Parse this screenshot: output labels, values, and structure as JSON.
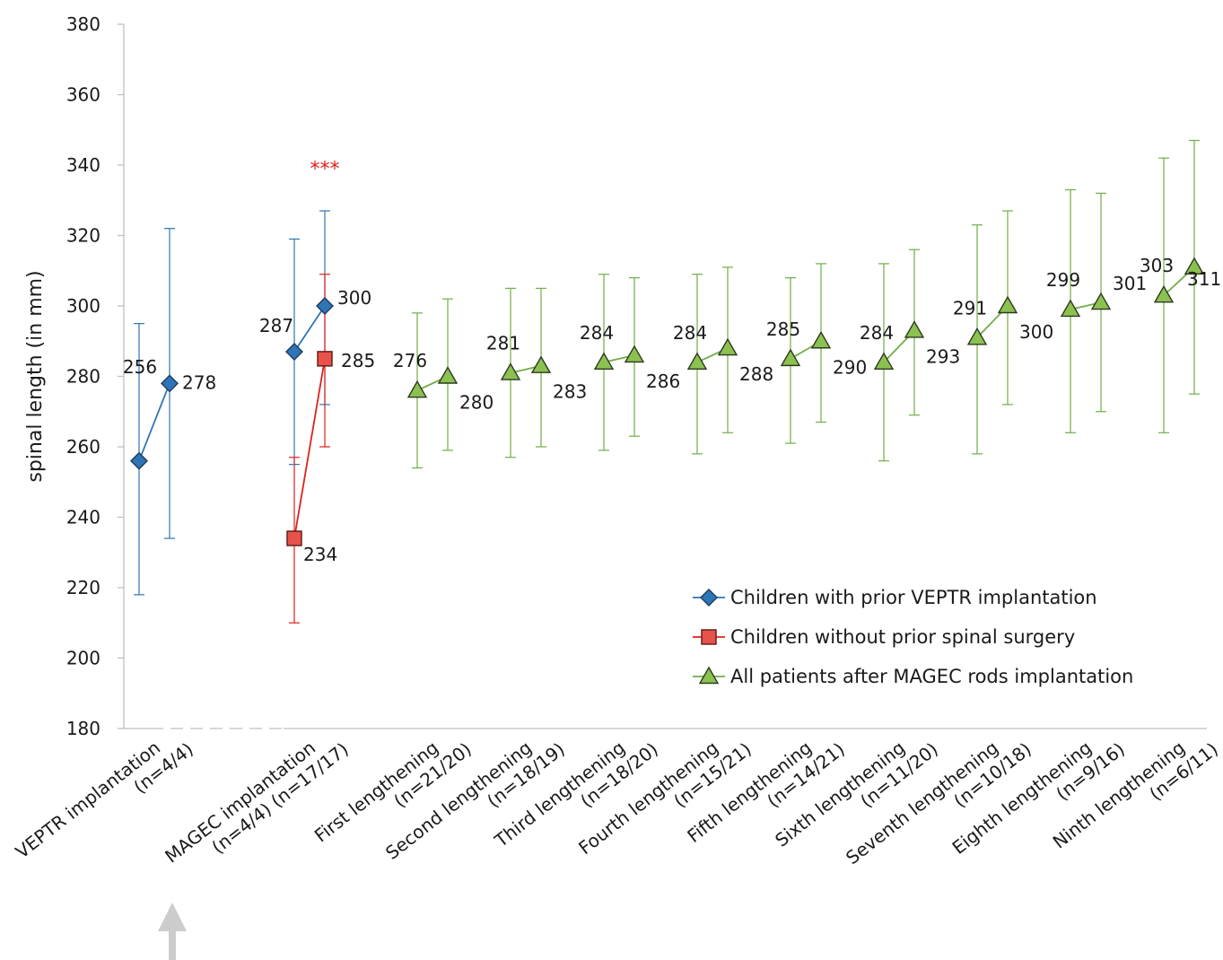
{
  "chart_data": {
    "type": "line",
    "ylabel": "spinal length (in mm)",
    "xlabel": "",
    "ylim": [
      180,
      380
    ],
    "yticks": [
      180,
      200,
      220,
      240,
      260,
      280,
      300,
      320,
      340,
      360,
      380
    ],
    "grid": false,
    "legend_position": "lower-right",
    "categories": [
      {
        "line1": "VEPTR implantation",
        "line2": "(n=4/4)"
      },
      {
        "line1": "MAGEC implantation",
        "line2": "(n=4/4) (n=17/17)"
      },
      {
        "line1": "First lengthening",
        "line2": "(n=21/20)"
      },
      {
        "line1": "Second lengthening",
        "line2": "(n=18/19)"
      },
      {
        "line1": "Third lengthening",
        "line2": "(n=18/20)"
      },
      {
        "line1": "Fourth lengthening",
        "line2": "(n=15/21)"
      },
      {
        "line1": "Fifth lengthening",
        "line2": "(n=14/21)"
      },
      {
        "line1": "Sixth lengthening",
        "line2": "(n=11/20)"
      },
      {
        "line1": "Seventh lengthening",
        "line2": "(n=10/18)"
      },
      {
        "line1": "Eighth lengthening",
        "line2": "(n=9/16)"
      },
      {
        "line1": "Ninth lengthening",
        "line2": "(n=6/11)"
      }
    ],
    "series": [
      {
        "name": "Children with prior VEPTR implantation",
        "color": "#2e75b6",
        "fill": "#2e75b6",
        "marker": "diamond",
        "segments": [
          [
            {
              "cat": 0,
              "side": "left",
              "y": 256,
              "err_low": 218,
              "err_high": 295,
              "label": "256"
            },
            {
              "cat": 0,
              "side": "right",
              "y": 278,
              "err_low": 234,
              "err_high": 322,
              "label": "278"
            }
          ],
          [
            {
              "cat": 1,
              "side": "left",
              "y": 287,
              "err_low": 255,
              "err_high": 319,
              "label": "287"
            },
            {
              "cat": 1,
              "side": "right",
              "y": 300,
              "err_low": 272,
              "err_high": 327,
              "label": "300"
            }
          ]
        ]
      },
      {
        "name": "Children without prior spinal surgery",
        "color": "#e0201b",
        "fill": "#e8524a",
        "marker": "square",
        "segments": [
          [
            {
              "cat": 1,
              "side": "left",
              "y": 234,
              "err_low": 210,
              "err_high": 257,
              "label": "234"
            },
            {
              "cat": 1,
              "side": "right",
              "y": 285,
              "err_low": 260,
              "err_high": 309,
              "label": "285"
            }
          ]
        ]
      },
      {
        "name": "All patients after MAGEC rods implantation",
        "color": "#70ad47",
        "fill": "#8cc152",
        "marker": "triangle",
        "segments": [
          [
            {
              "cat": 2,
              "side": "left",
              "y": 276,
              "err_low": 254,
              "err_high": 298,
              "label": "276"
            },
            {
              "cat": 2,
              "side": "right",
              "y": 280,
              "err_low": 259,
              "err_high": 302,
              "label": "280"
            }
          ],
          [
            {
              "cat": 3,
              "side": "left",
              "y": 281,
              "err_low": 257,
              "err_high": 305,
              "label": "281"
            },
            {
              "cat": 3,
              "side": "right",
              "y": 283,
              "err_low": 260,
              "err_high": 305,
              "label": "283"
            }
          ],
          [
            {
              "cat": 4,
              "side": "left",
              "y": 284,
              "err_low": 259,
              "err_high": 309,
              "label": "284"
            },
            {
              "cat": 4,
              "side": "right",
              "y": 286,
              "err_low": 263,
              "err_high": 308,
              "label": "286"
            }
          ],
          [
            {
              "cat": 5,
              "side": "left",
              "y": 284,
              "err_low": 258,
              "err_high": 309,
              "label": "284"
            },
            {
              "cat": 5,
              "side": "right",
              "y": 288,
              "err_low": 264,
              "err_high": 311,
              "label": "288"
            }
          ],
          [
            {
              "cat": 6,
              "side": "left",
              "y": 285,
              "err_low": 261,
              "err_high": 308,
              "label": "285"
            },
            {
              "cat": 6,
              "side": "right",
              "y": 290,
              "err_low": 267,
              "err_high": 312,
              "label": "290"
            }
          ],
          [
            {
              "cat": 7,
              "side": "left",
              "y": 284,
              "err_low": 256,
              "err_high": 312,
              "label": "284"
            },
            {
              "cat": 7,
              "side": "right",
              "y": 293,
              "err_low": 269,
              "err_high": 316,
              "label": "293"
            }
          ],
          [
            {
              "cat": 8,
              "side": "left",
              "y": 291,
              "err_low": 258,
              "err_high": 323,
              "label": "291"
            },
            {
              "cat": 8,
              "side": "right",
              "y": 300,
              "err_low": 272,
              "err_high": 327,
              "label": "300"
            }
          ],
          [
            {
              "cat": 9,
              "side": "left",
              "y": 299,
              "err_low": 264,
              "err_high": 333,
              "label": "299"
            },
            {
              "cat": 9,
              "side": "right",
              "y": 301,
              "err_low": 270,
              "err_high": 332,
              "label": "301"
            }
          ],
          [
            {
              "cat": 10,
              "side": "left",
              "y": 303,
              "err_low": 264,
              "err_high": 342,
              "label": "303"
            },
            {
              "cat": 10,
              "side": "right",
              "y": 311,
              "err_low": 275,
              "err_high": 347,
              "label": "311"
            }
          ]
        ]
      }
    ],
    "annotations": [
      {
        "text": "***",
        "color": "#e0201b",
        "cat": 1,
        "near_y": 335
      }
    ],
    "pointer_arrow": {
      "color": "#cccccc",
      "points_to_category": 0
    }
  }
}
